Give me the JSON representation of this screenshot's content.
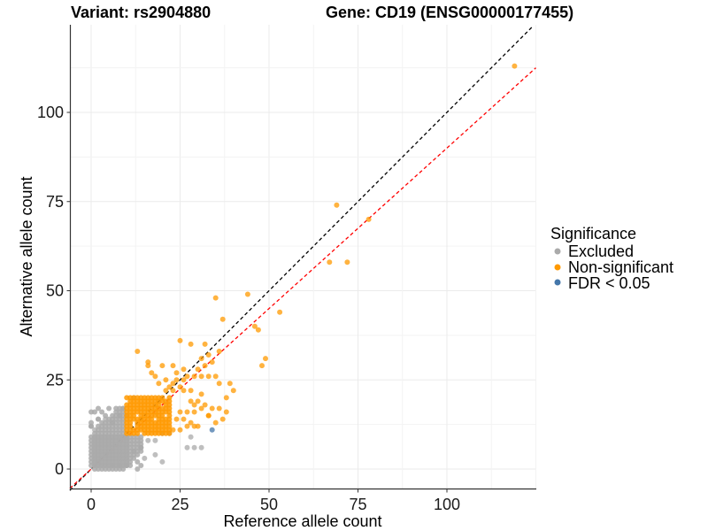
{
  "chart_data": {
    "type": "scatter",
    "title_left": "Variant: rs2904880",
    "title_right": "Gene: CD19 (ENSG00000177455)",
    "xlabel": "Reference allele count",
    "ylabel": "Alternative allele count",
    "xlim": [
      -6,
      125
    ],
    "ylim": [
      -6,
      124
    ],
    "x_ticks": [
      0,
      25,
      50,
      75,
      100
    ],
    "y_ticks": [
      0,
      25,
      50,
      75,
      100
    ],
    "grid": true,
    "legend": {
      "title": "Significance",
      "position": "right",
      "entries": [
        {
          "label": "Excluded",
          "color": "#aaaaaa"
        },
        {
          "label": "Non-significant",
          "color": "#ff9900"
        },
        {
          "label": "FDR < 0.05",
          "color": "#4477aa"
        }
      ]
    },
    "reference_lines": [
      {
        "name": "identity",
        "slope": 1.0,
        "intercept": 0,
        "color": "#000000",
        "style": "dashed"
      },
      {
        "name": "fitted",
        "slope": 0.9,
        "intercept": 0,
        "color": "#ff0000",
        "style": "dashed"
      }
    ],
    "series": [
      {
        "name": "Excluded",
        "color": "#aaaaaa",
        "regions": [
          {
            "description": "dense block",
            "x_range": [
              0,
              10
            ],
            "y_range": [
              1,
              17
            ]
          },
          {
            "description": "lower band",
            "x_range": [
              1,
              14
            ],
            "y_range": [
              0,
              9
            ]
          }
        ],
        "points": [
          [
            12,
            20
          ],
          [
            9,
            17
          ],
          [
            8,
            15
          ],
          [
            10,
            15
          ],
          [
            2,
            14
          ],
          [
            4,
            14
          ],
          [
            6,
            13
          ],
          [
            0,
            12
          ],
          [
            1,
            11
          ],
          [
            16,
            8
          ],
          [
            18,
            8
          ],
          [
            12,
            5
          ],
          [
            14,
            6
          ],
          [
            18,
            4
          ],
          [
            6,
            1
          ],
          [
            8,
            1
          ],
          [
            10,
            1
          ],
          [
            15,
            3
          ],
          [
            20,
            2
          ],
          [
            28,
            9
          ],
          [
            27,
            6
          ],
          [
            29,
            6
          ],
          [
            31,
            6
          ],
          [
            20,
            10
          ],
          [
            22,
            10
          ]
        ]
      },
      {
        "name": "Non-significant",
        "color": "#ff9900",
        "regions": [
          {
            "description": "dense block",
            "x_range": [
              10,
              22
            ],
            "y_range": [
              10,
              20
            ]
          }
        ],
        "points": [
          [
            119,
            113
          ],
          [
            69,
            74
          ],
          [
            78,
            70
          ],
          [
            67,
            58
          ],
          [
            72,
            58
          ],
          [
            44,
            49
          ],
          [
            35,
            48
          ],
          [
            53,
            44
          ],
          [
            37,
            42
          ],
          [
            46,
            40
          ],
          [
            47,
            39
          ],
          [
            49,
            31
          ],
          [
            48,
            29
          ],
          [
            25,
            36
          ],
          [
            28,
            35
          ],
          [
            32,
            35
          ],
          [
            33,
            32
          ],
          [
            36,
            33
          ],
          [
            31,
            31
          ],
          [
            32,
            29
          ],
          [
            34,
            30
          ],
          [
            30,
            28
          ],
          [
            24,
            27
          ],
          [
            26,
            28
          ],
          [
            27,
            26
          ],
          [
            29,
            26
          ],
          [
            31,
            26
          ],
          [
            33,
            26
          ],
          [
            35,
            26
          ],
          [
            36,
            24
          ],
          [
            13,
            33
          ],
          [
            16,
            30
          ],
          [
            16,
            29
          ],
          [
            20,
            29
          ],
          [
            23,
            29
          ],
          [
            18,
            26
          ],
          [
            21,
            25
          ],
          [
            24,
            25
          ],
          [
            26,
            25
          ],
          [
            23,
            24
          ],
          [
            17,
            27
          ],
          [
            19,
            24
          ],
          [
            22,
            23
          ],
          [
            25,
            23
          ],
          [
            21,
            22
          ],
          [
            23,
            22
          ],
          [
            26,
            22
          ],
          [
            28,
            22
          ],
          [
            31,
            21
          ],
          [
            28,
            19
          ],
          [
            30,
            19
          ],
          [
            29,
            18
          ],
          [
            32,
            18
          ],
          [
            34,
            17
          ],
          [
            31,
            17
          ],
          [
            33,
            15
          ],
          [
            38,
            20
          ],
          [
            40,
            22
          ],
          [
            39,
            24
          ],
          [
            36,
            17
          ],
          [
            38,
            16
          ],
          [
            37,
            14
          ],
          [
            33,
            15
          ],
          [
            28,
            13
          ],
          [
            29,
            12
          ],
          [
            30,
            12
          ],
          [
            35,
            13
          ],
          [
            25,
            16
          ],
          [
            27,
            16
          ],
          [
            29,
            16
          ],
          [
            24,
            14
          ],
          [
            26,
            14
          ],
          [
            27,
            12
          ],
          [
            23,
            11
          ],
          [
            25,
            11
          ]
        ]
      },
      {
        "name": "FDR < 0.05",
        "color": "#4477aa",
        "points": [
          [
            34,
            11
          ]
        ]
      }
    ]
  }
}
